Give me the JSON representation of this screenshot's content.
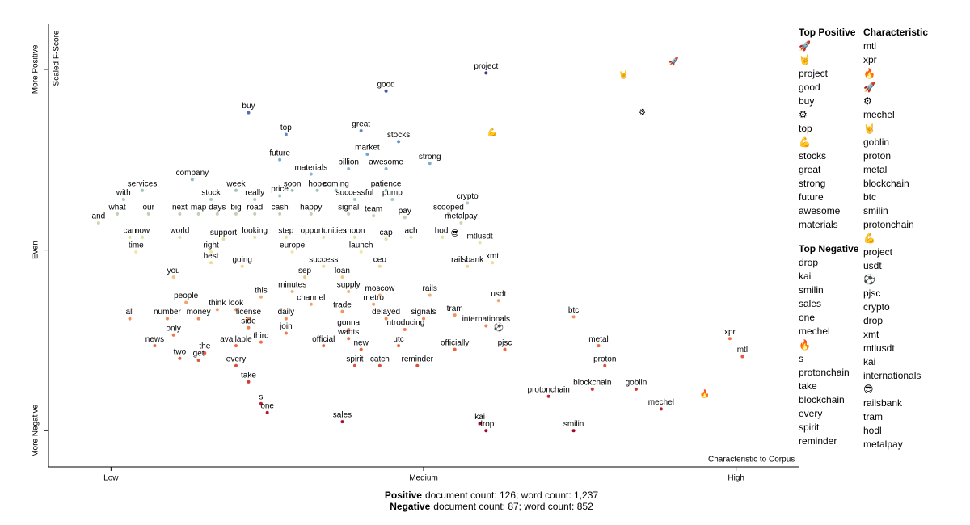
{
  "chart_data": {
    "type": "scatter",
    "x_label": "Characteristic to Corpus",
    "y_label": "Scaled F-Score",
    "xlim": [
      -0.1,
      1.1
    ],
    "ylim": [
      -1.2,
      1.25
    ],
    "xticks": [
      {
        "value": 0,
        "label": "Low"
      },
      {
        "value": 0.5,
        "label": "Medium"
      },
      {
        "value": 1,
        "label": "High"
      }
    ],
    "yticks": [
      {
        "value": -1,
        "label": "More Negative"
      },
      {
        "value": 0,
        "label": "Even"
      },
      {
        "value": 1,
        "label": "More Positive"
      }
    ],
    "terms": [
      "project",
      "good",
      "buy",
      "top",
      "great",
      "stocks",
      "market",
      "strong",
      "future",
      "materials",
      "billion",
      "awesome",
      "company",
      "week",
      "stock",
      "really",
      "price",
      "soon",
      "hope",
      "coming",
      "patience",
      "successful",
      "pump",
      "crypto",
      "services",
      "with",
      "what",
      "our",
      "next",
      "map",
      "days",
      "big",
      "road",
      "cash",
      "happy",
      "signal",
      "team",
      "pay",
      "scooped",
      "metalpay",
      "and",
      "can",
      "now",
      "world",
      "support",
      "looking",
      "step",
      "opportunities",
      "moon",
      "cap",
      "ach",
      "hodl",
      "mtlusdt",
      "😎",
      "time",
      "right",
      "best",
      "going",
      "europe",
      "launch",
      "ceo",
      "success",
      "railsbank",
      "xmt",
      "you",
      "sep",
      "loan",
      "minutes",
      "supply",
      "moscow",
      "rails",
      "usdt",
      "people",
      "this",
      "channel",
      "metro",
      "think",
      "look",
      "trade",
      "tram",
      "all",
      "number",
      "money",
      "license",
      "daily",
      "delayed",
      "signals",
      "internationals",
      "side",
      "introducing",
      "join",
      "gonna",
      "only",
      "available",
      "third",
      "official",
      "wants",
      "utc",
      "officially",
      "new",
      "news",
      "two",
      "the",
      "get",
      "every",
      "spirit",
      "catch",
      "reminder",
      "pjsc",
      "⚽",
      "take",
      "s",
      "one",
      "sales",
      "kai",
      "drop",
      "btc",
      "metal",
      "proton",
      "blockchain",
      "protonchain",
      "goblin",
      "smilin",
      "mechel",
      "xpr",
      "mtl",
      "🚀",
      "🤘",
      "⚙",
      "💪",
      "🔥"
    ],
    "x": [
      0.6,
      0.44,
      0.22,
      0.28,
      0.4,
      0.46,
      0.41,
      0.51,
      0.27,
      0.32,
      0.38,
      0.44,
      0.13,
      0.2,
      0.16,
      0.23,
      0.27,
      0.29,
      0.33,
      0.36,
      0.44,
      0.39,
      0.45,
      0.57,
      0.05,
      0.02,
      0.01,
      0.06,
      0.11,
      0.14,
      0.17,
      0.2,
      0.23,
      0.27,
      0.32,
      0.38,
      0.42,
      0.47,
      0.54,
      0.56,
      -0.02,
      0.03,
      0.05,
      0.11,
      0.18,
      0.23,
      0.28,
      0.34,
      0.39,
      0.44,
      0.48,
      0.53,
      0.59,
      0.55,
      0.04,
      0.16,
      0.16,
      0.21,
      0.29,
      0.4,
      0.43,
      0.34,
      0.57,
      0.61,
      0.1,
      0.31,
      0.37,
      0.29,
      0.38,
      0.43,
      0.51,
      0.62,
      0.12,
      0.24,
      0.32,
      0.42,
      0.17,
      0.2,
      0.37,
      0.55,
      0.03,
      0.09,
      0.14,
      0.22,
      0.28,
      0.44,
      0.5,
      0.6,
      0.22,
      0.47,
      0.28,
      0.38,
      0.1,
      0.2,
      0.24,
      0.34,
      0.38,
      0.46,
      0.55,
      0.4,
      0.07,
      0.11,
      0.15,
      0.14,
      0.2,
      0.39,
      0.43,
      0.49,
      0.63,
      0.62,
      0.22,
      0.24,
      0.25,
      0.37,
      0.59,
      0.6,
      0.74,
      0.78,
      0.79,
      0.77,
      0.7,
      0.84,
      0.74,
      0.88,
      0.99,
      1.01,
      0.9,
      0.82,
      0.85,
      0.61,
      0.95
    ],
    "y": [
      0.98,
      0.88,
      0.76,
      0.64,
      0.66,
      0.6,
      0.53,
      0.48,
      0.5,
      0.42,
      0.45,
      0.45,
      0.39,
      0.33,
      0.28,
      0.28,
      0.3,
      0.33,
      0.33,
      0.33,
      0.33,
      0.28,
      0.28,
      0.26,
      0.33,
      0.28,
      0.2,
      0.2,
      0.2,
      0.2,
      0.2,
      0.2,
      0.2,
      0.2,
      0.2,
      0.2,
      0.19,
      0.18,
      0.2,
      0.15,
      0.15,
      0.07,
      0.07,
      0.07,
      0.06,
      0.07,
      0.07,
      0.07,
      0.07,
      0.06,
      0.07,
      0.07,
      0.04,
      0.09,
      -0.01,
      -0.01,
      -0.07,
      -0.09,
      -0.01,
      -0.01,
      -0.09,
      -0.09,
      -0.09,
      -0.07,
      -0.15,
      -0.15,
      -0.15,
      -0.23,
      -0.23,
      -0.25,
      -0.25,
      -0.28,
      -0.29,
      -0.26,
      -0.3,
      -0.3,
      -0.33,
      -0.33,
      -0.34,
      -0.36,
      -0.38,
      -0.38,
      -0.38,
      -0.38,
      -0.38,
      -0.38,
      -0.38,
      -0.42,
      -0.43,
      -0.44,
      -0.46,
      -0.44,
      -0.47,
      -0.53,
      -0.51,
      -0.53,
      -0.49,
      -0.53,
      -0.55,
      -0.55,
      -0.53,
      -0.6,
      -0.57,
      -0.61,
      -0.64,
      -0.64,
      -0.64,
      -0.64,
      -0.55,
      -0.43,
      -0.73,
      -0.85,
      -0.9,
      -0.95,
      -0.96,
      -1.0,
      -0.37,
      -0.53,
      -0.64,
      -0.77,
      -0.81,
      -0.77,
      -1.0,
      -0.88,
      -0.49,
      -0.59,
      1.04,
      0.97,
      0.76,
      0.65,
      -0.8
    ]
  },
  "top_positive": {
    "title": "Top Positive",
    "terms": [
      "🚀",
      "🤘",
      "project",
      "good",
      "buy",
      "⚙",
      "top",
      "💪",
      "stocks",
      "great",
      "strong",
      "future",
      "awesome",
      "materials"
    ]
  },
  "top_negative": {
    "title": "Top Negative",
    "terms": [
      "drop",
      "kai",
      "smilin",
      "sales",
      "one",
      "mechel",
      "🔥",
      "s",
      "protonchain",
      "take",
      "blockchain",
      "every",
      "spirit",
      "reminder"
    ]
  },
  "characteristic": {
    "title": "Characteristic",
    "terms": [
      "mtl",
      "xpr",
      "🔥",
      "🚀",
      "⚙",
      "mechel",
      "🤘",
      "goblin",
      "proton",
      "metal",
      "blockchain",
      "btc",
      "smilin",
      "protonchain",
      "💪",
      "project",
      "usdt",
      "⚽",
      "pjsc",
      "crypto",
      "drop",
      "xmt",
      "mtlusdt",
      "kai",
      "internationals",
      "😎",
      "railsbank",
      "tram",
      "hodl",
      "metalpay"
    ]
  },
  "footer": [
    {
      "category": "Positive",
      "text": "document count: 126; word count: 1,237"
    },
    {
      "category": "Negative",
      "text": "document count: 87; word count: 852"
    }
  ]
}
